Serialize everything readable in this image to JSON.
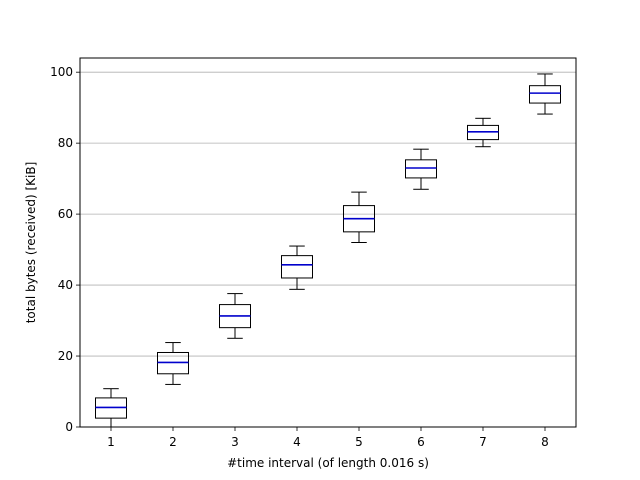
{
  "chart_data": {
    "type": "boxplot",
    "title": "",
    "xlabel": "#time interval (of length 0.016 s)",
    "ylabel": "total bytes (received) [KiB]",
    "categories": [
      "1",
      "2",
      "3",
      "4",
      "5",
      "6",
      "7",
      "8"
    ],
    "ylim": [
      0,
      104
    ],
    "yticks": [
      0,
      20,
      40,
      60,
      80,
      100
    ],
    "grid": "horizontal",
    "median_color": "#0000cc",
    "box_color": "#000000",
    "grid_color": "#b0b0b0",
    "boxes": [
      {
        "label": "1",
        "whisker_low": 0.0,
        "q1": 2.5,
        "median": 5.5,
        "q3": 8.2,
        "whisker_high": 10.8
      },
      {
        "label": "2",
        "whisker_low": 12.0,
        "q1": 15.0,
        "median": 18.2,
        "q3": 21.0,
        "whisker_high": 23.8
      },
      {
        "label": "3",
        "whisker_low": 25.0,
        "q1": 28.0,
        "median": 31.3,
        "q3": 34.5,
        "whisker_high": 37.6
      },
      {
        "label": "4",
        "whisker_low": 38.8,
        "q1": 42.0,
        "median": 45.7,
        "q3": 48.3,
        "whisker_high": 51.0
      },
      {
        "label": "5",
        "whisker_low": 52.0,
        "q1": 55.0,
        "median": 58.7,
        "q3": 62.4,
        "whisker_high": 66.2
      },
      {
        "label": "6",
        "whisker_low": 67.0,
        "q1": 70.2,
        "median": 73.0,
        "q3": 75.3,
        "whisker_high": 78.3
      },
      {
        "label": "7",
        "whisker_low": 79.0,
        "q1": 81.0,
        "median": 83.2,
        "q3": 85.0,
        "whisker_high": 87.0
      },
      {
        "label": "8",
        "whisker_low": 88.2,
        "q1": 91.3,
        "median": 94.1,
        "q3": 96.2,
        "whisker_high": 99.5
      }
    ]
  }
}
